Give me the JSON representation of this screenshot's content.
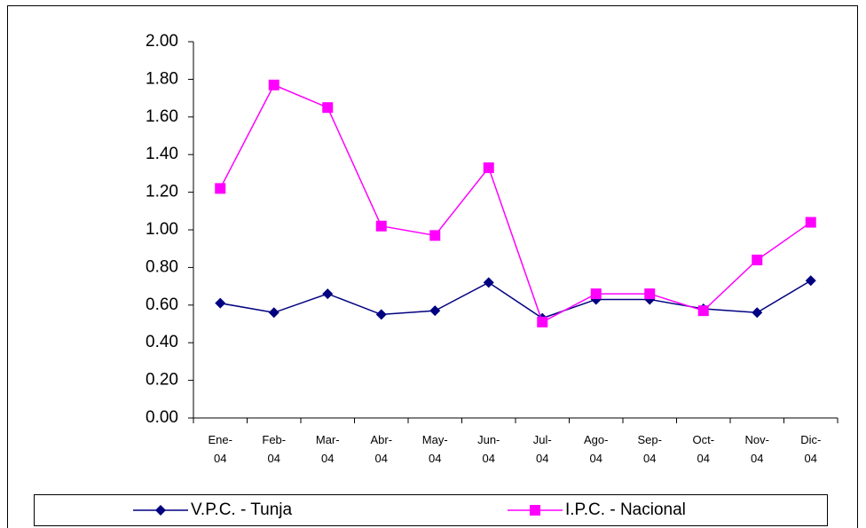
{
  "chart_data": {
    "type": "line",
    "categories": [
      "Ene-\n04",
      "Feb-\n04",
      "Mar-\n04",
      "Abr-\n04",
      "May-\n04",
      "Jun-\n04",
      "Jul-\n04",
      "Ago-\n04",
      "Sep-\n04",
      "Oct-\n04",
      "Nov-\n04",
      "Dic-\n04"
    ],
    "series": [
      {
        "name": "V.P.C. - Tunja",
        "color": "#000080",
        "marker": "diamond",
        "values": [
          0.61,
          0.56,
          0.66,
          0.55,
          0.57,
          0.72,
          0.53,
          0.63,
          0.63,
          0.58,
          0.56,
          0.73
        ]
      },
      {
        "name": "I.P.C. - Nacional",
        "color": "#ff00ff",
        "marker": "square",
        "values": [
          1.22,
          1.77,
          1.65,
          1.02,
          0.97,
          1.33,
          0.51,
          0.66,
          0.66,
          0.57,
          0.84,
          1.04
        ]
      }
    ],
    "ylim": [
      0,
      2
    ],
    "yticks": [
      {
        "value": 0,
        "label": "0.00"
      },
      {
        "value": 0.2,
        "label": "0.20"
      },
      {
        "value": 0.4,
        "label": "0.40"
      },
      {
        "value": 0.6,
        "label": "0.60"
      },
      {
        "value": 0.8,
        "label": "0.80"
      },
      {
        "value": 1,
        "label": "1.00"
      },
      {
        "value": 1.2,
        "label": "1.20"
      },
      {
        "value": 1.4,
        "label": "1.40"
      },
      {
        "value": 1.6,
        "label": "1.60"
      },
      {
        "value": 1.8,
        "label": "1.80"
      },
      {
        "value": 2,
        "label": "2.00"
      }
    ],
    "grid": false,
    "legend": "bottom"
  }
}
